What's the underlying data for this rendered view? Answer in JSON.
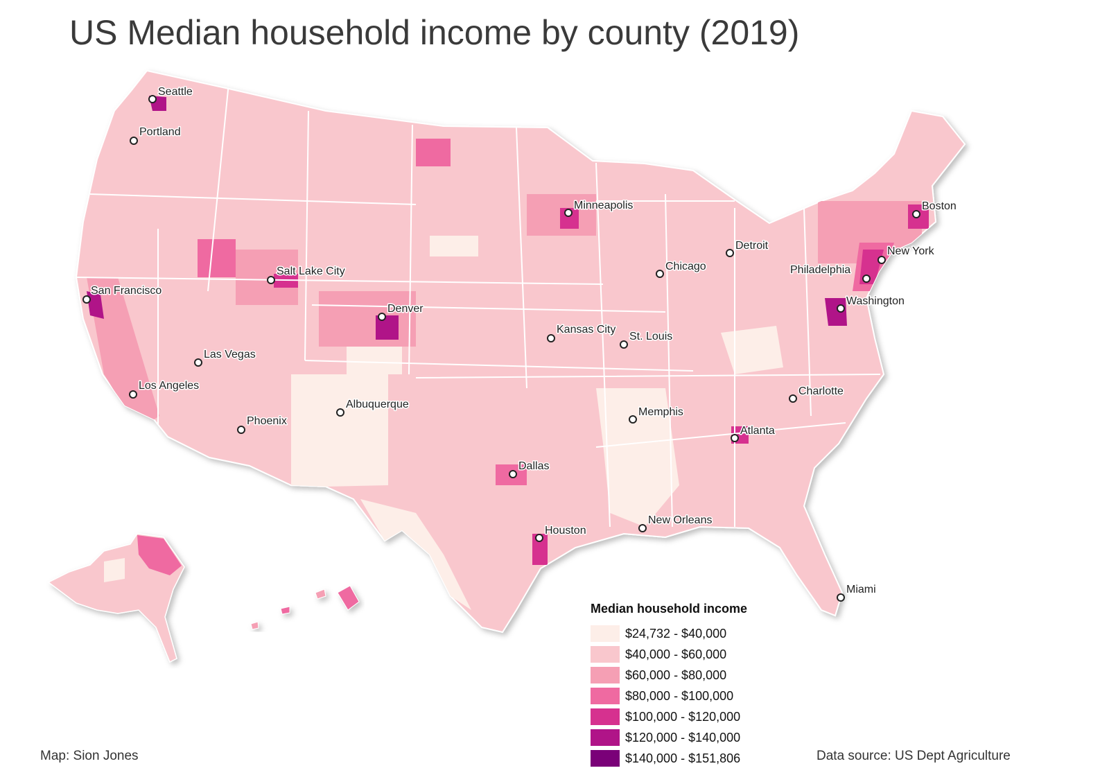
{
  "title": "US Median household income by county (2019)",
  "legend": {
    "title": "Median household income",
    "bins": [
      {
        "label": "$24,732 - $40,000",
        "color": "#fdeee8"
      },
      {
        "label": "$40,000 - $60,000",
        "color": "#f9c7cd"
      },
      {
        "label": "$60,000 - $80,000",
        "color": "#f59fb4"
      },
      {
        "label": "$80,000 - $100,000",
        "color": "#ef6aa1"
      },
      {
        "label": "$100,000 - $120,000",
        "color": "#d6318f"
      },
      {
        "label": "$120,000 - $140,000",
        "color": "#b01488"
      },
      {
        "label": "$140,000 - $151,806",
        "color": "#7a0178"
      }
    ]
  },
  "cities": [
    {
      "name": "Seattle"
    },
    {
      "name": "Portland"
    },
    {
      "name": "San Francisco"
    },
    {
      "name": "Los Angeles"
    },
    {
      "name": "Las Vegas"
    },
    {
      "name": "Phoenix"
    },
    {
      "name": "Salt Lake City"
    },
    {
      "name": "Denver"
    },
    {
      "name": "Albuquerque"
    },
    {
      "name": "Minneapolis"
    },
    {
      "name": "Kansas City"
    },
    {
      "name": "St. Louis"
    },
    {
      "name": "Chicago"
    },
    {
      "name": "Detroit"
    },
    {
      "name": "Memphis"
    },
    {
      "name": "Dallas"
    },
    {
      "name": "Houston"
    },
    {
      "name": "New Orleans"
    },
    {
      "name": "Atlanta"
    },
    {
      "name": "Charlotte"
    },
    {
      "name": "Miami"
    },
    {
      "name": "Washington"
    },
    {
      "name": "Philadelphia"
    },
    {
      "name": "New York"
    },
    {
      "name": "Boston"
    }
  ],
  "credits": {
    "author": "Map: Sion Jones",
    "source": "Data source: US Dept Agriculture"
  }
}
